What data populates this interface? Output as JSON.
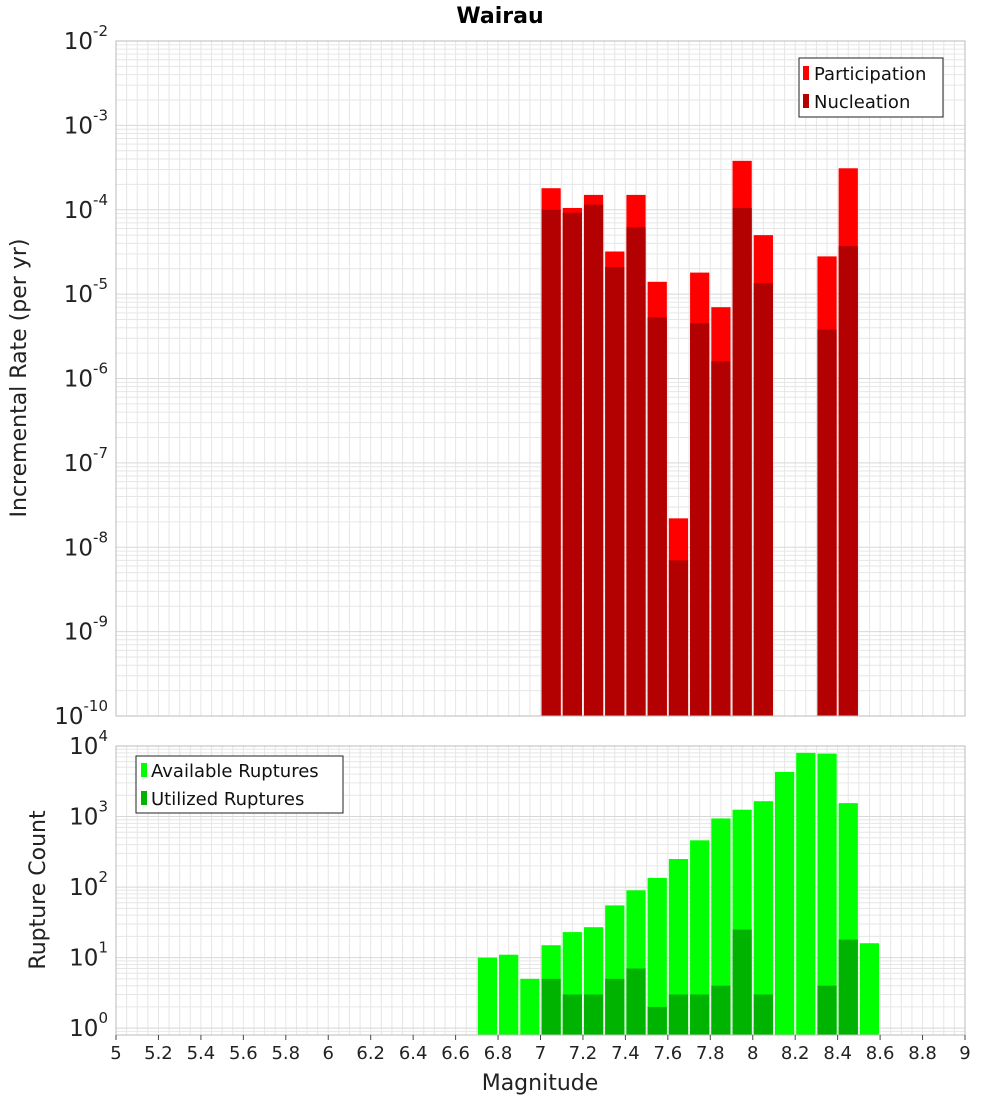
{
  "title": "Wairau",
  "xlabel": "Magnitude",
  "colors": {
    "participation": "#ff0000",
    "nucleation": "#b30000",
    "available": "#00ff00",
    "utilized": "#00b300",
    "grid": "#e6e6e6",
    "frame": "#bbbbbb"
  },
  "chart_data": [
    {
      "type": "bar",
      "title": "Wairau",
      "ylabel": "Incremental Rate (per yr)",
      "yscale": "log",
      "ylim": [
        1e-10,
        0.01
      ],
      "xlim": [
        5,
        9
      ],
      "xticks": [
        "5",
        "5.2",
        "5.4",
        "5.6",
        "5.8",
        "6",
        "6.2",
        "6.4",
        "6.6",
        "6.8",
        "7",
        "7.2",
        "7.4",
        "7.6",
        "7.8",
        "8",
        "8.2",
        "8.4",
        "8.6",
        "8.8",
        "9"
      ],
      "yticks": [
        {
          "base": "10",
          "exp": "-2"
        },
        {
          "base": "10",
          "exp": "-3"
        },
        {
          "base": "10",
          "exp": "-4"
        },
        {
          "base": "10",
          "exp": "-5"
        },
        {
          "base": "10",
          "exp": "-6"
        },
        {
          "base": "10",
          "exp": "-7"
        },
        {
          "base": "10",
          "exp": "-8"
        },
        {
          "base": "10",
          "exp": "-9"
        },
        {
          "base": "10",
          "exp": "-10"
        }
      ],
      "legend_position": "top-right",
      "legend": [
        "Participation",
        "Nucleation"
      ],
      "x": [
        7.05,
        7.15,
        7.25,
        7.35,
        7.45,
        7.55,
        7.65,
        7.75,
        7.85,
        7.95,
        8.05,
        8.35,
        8.45
      ],
      "series": [
        {
          "name": "Participation",
          "values": [
            0.00018,
            0.000105,
            0.00015,
            3.2e-05,
            0.00015,
            1.4e-05,
            2.2e-08,
            1.8e-05,
            7e-06,
            0.00038,
            5e-05,
            2.8e-05,
            0.00031
          ]
        },
        {
          "name": "Nucleation",
          "values": [
            0.0001,
            9.2e-05,
            0.000115,
            2.1e-05,
            6.2e-05,
            5.3e-06,
            7e-09,
            4.5e-06,
            1.6e-06,
            0.000105,
            1.35e-05,
            3.8e-06,
            3.7e-05
          ]
        }
      ]
    },
    {
      "type": "bar",
      "ylabel": "Rupture Count",
      "yscale": "log",
      "ylim": [
        0.8,
        10000
      ],
      "xlim": [
        5,
        9
      ],
      "yticks": [
        {
          "base": "10",
          "exp": "4"
        },
        {
          "base": "10",
          "exp": "3"
        },
        {
          "base": "10",
          "exp": "2"
        },
        {
          "base": "10",
          "exp": "1"
        },
        {
          "base": "10",
          "exp": "0"
        }
      ],
      "legend_position": "top-left",
      "legend": [
        "Available Ruptures",
        "Utilized Ruptures"
      ],
      "x": [
        6.75,
        6.85,
        6.95,
        7.05,
        7.15,
        7.25,
        7.35,
        7.45,
        7.55,
        7.65,
        7.75,
        7.85,
        7.95,
        8.05,
        8.15,
        8.25,
        8.35,
        8.45,
        8.55
      ],
      "series": [
        {
          "name": "Available Ruptures",
          "values": [
            10,
            11,
            5,
            15,
            23,
            27,
            55,
            90,
            135,
            250,
            460,
            940,
            1250,
            1650,
            4300,
            8000,
            7800,
            1550,
            16
          ]
        },
        {
          "name": "Utilized Ruptures",
          "values": [
            0,
            0,
            0,
            5,
            3,
            3,
            5,
            7,
            2,
            3,
            3,
            4,
            25,
            3,
            0,
            0,
            4,
            18,
            0
          ]
        }
      ]
    }
  ]
}
